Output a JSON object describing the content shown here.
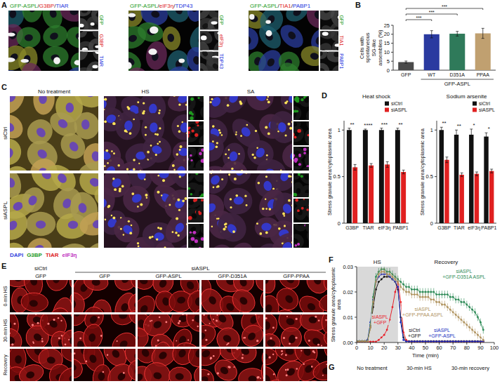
{
  "panel_labels": [
    "A",
    "B",
    "C",
    "D",
    "E",
    "F",
    "G"
  ],
  "panel_a": {
    "images": [
      {
        "title": "GFP-ASPL/G3BP/TIAR",
        "channels": [
          "GFP",
          "G3BP",
          "TIAR"
        ]
      },
      {
        "title": "GFP-ASPL/eIF3η/TDP43",
        "channels": [
          "GFP",
          "eIF3η",
          "TDP43"
        ]
      },
      {
        "title": "GFP-ASPL/TIA1/PABP1",
        "channels": [
          "GFP",
          "TIA1",
          "PABP1"
        ]
      }
    ]
  },
  "panel_c": {
    "columns": [
      "No treatment",
      "HS",
      "SA"
    ],
    "rows": [
      "siCtrl",
      "siASPL"
    ],
    "stain_legend": [
      "DAPI",
      "G3BP",
      "TIAR",
      "eIF3η"
    ]
  },
  "panel_e": {
    "groups": [
      {
        "label": "siCtrl",
        "columns": [
          "GFP"
        ]
      },
      {
        "label": "siASPL",
        "columns": [
          "GFP",
          "GFP-ASPL",
          "GFP-D351A",
          "GFP-PPAA"
        ]
      }
    ],
    "rows": [
      "0-min HS",
      "30-min HS",
      "Recovery"
    ]
  },
  "panel_g": {
    "columns": [
      "No treatment",
      "30-min HS",
      "30-min recovery"
    ]
  },
  "chart_data": [
    {
      "type": "bar",
      "y_label": "Cells with spontaneous SG-like assemblies (%)",
      "categories": [
        "GFP",
        "WT",
        "D351A",
        "PPAA"
      ],
      "values": [
        4.5,
        20,
        20.3,
        20.5
      ],
      "errors": [
        0.6,
        2,
        1.3,
        2.8
      ],
      "colors": [
        "#4a4a4a",
        "#2a3aa0",
        "#2f7a5a",
        "#c0a070"
      ],
      "ylim": [
        0,
        25
      ],
      "yticks": [
        0,
        5,
        10,
        15,
        20,
        25
      ],
      "annotations": {
        "group_label": "GFP-ASPL",
        "group": [
          1,
          3
        ]
      },
      "significance": [
        {
          "pair": [
            0,
            1
          ],
          "label": "***"
        },
        {
          "pair": [
            0,
            2
          ],
          "label": "***"
        },
        {
          "pair": [
            0,
            3
          ],
          "label": "***"
        }
      ]
    },
    {
      "type": "bar",
      "title": "Heat shock",
      "y_label": "Stress granule area/cytoplasmic area",
      "categories": [
        "G3BP",
        "TIAR",
        "eIF3η",
        "PABP1"
      ],
      "series": [
        {
          "name": "siCtrl",
          "color": "#111111",
          "values": [
            1,
            1,
            1,
            1
          ],
          "errors": [
            0.02,
            0.01,
            0.02,
            0.02
          ]
        },
        {
          "name": "siASPL",
          "color": "#e02020",
          "values": [
            0.6,
            0.62,
            0.63,
            0.55
          ],
          "errors": [
            0.03,
            0.02,
            0.03,
            0.02
          ]
        }
      ],
      "ylim": [
        0,
        1.1
      ],
      "yticks": [
        0,
        0.5,
        1
      ],
      "legend": "top-right",
      "significance": [
        "**",
        "****",
        "***",
        "**"
      ]
    },
    {
      "type": "bar",
      "title": "Sodium arsenite",
      "y_label": "Stress granule area/cytoplasmic area",
      "categories": [
        "G3BP",
        "TIAR",
        "eIF3η",
        "PABP1"
      ],
      "series": [
        {
          "name": "siCtrl",
          "color": "#111111",
          "values": [
            1,
            0.95,
            0.95,
            0.93
          ],
          "errors": [
            0.03,
            0.05,
            0.06,
            0.04
          ]
        },
        {
          "name": "siASPL",
          "color": "#e02020",
          "values": [
            0.68,
            0.52,
            0.53,
            0.56
          ],
          "errors": [
            0.03,
            0.02,
            0.02,
            0.02
          ]
        }
      ],
      "ylim": [
        0,
        1.1
      ],
      "yticks": [
        0,
        0.5,
        1
      ],
      "legend": "top-right",
      "significance": [
        "**",
        "**",
        "*",
        "*"
      ]
    },
    {
      "type": "line",
      "y_label": "Stress granule area/cytoplasmic area",
      "x_label": "Time (min)",
      "x": [
        0,
        2,
        4,
        6,
        8,
        10,
        12,
        14,
        16,
        18,
        20,
        22,
        24,
        26,
        28,
        30,
        32,
        34,
        36,
        38,
        40,
        42,
        44,
        46,
        48,
        50,
        52,
        54,
        56,
        58,
        60,
        62,
        64,
        66,
        68,
        70,
        72,
        74,
        76,
        78,
        80,
        82,
        84,
        86,
        88,
        90,
        92
      ],
      "series": [
        {
          "name": "siCtrl+GFP",
          "color": "#111111",
          "values": [
            0.0005,
            0.0005,
            0.0005,
            0.0005,
            0.001,
            0.006,
            0.014,
            0.021,
            0.024,
            0.025,
            0.026,
            0.026,
            0.026,
            0.025,
            0.024,
            0.021,
            0.01,
            0.002,
            0.0005,
            0.0005,
            0.0005,
            0.0005,
            0.0005,
            0.0005,
            0.0005,
            0.0005,
            0.0005,
            0.0005,
            0.0005,
            0.0005,
            0.0005,
            0.0005,
            0.0005,
            0.0005,
            0.0005,
            0.0005,
            0.0005,
            0.0005,
            0.0005,
            0.0005,
            0.0005,
            0.0005,
            0.0005,
            0.0005,
            0.0005,
            0.0005,
            0.0005
          ]
        },
        {
          "name": "siASPL+GFP",
          "color": "#e8202a",
          "values": [
            0.0003,
            0.0003,
            0.0003,
            0.0003,
            0.0003,
            0.0003,
            0.0003,
            0.0003,
            0.001,
            0.002,
            0.003,
            0.005,
            0.009,
            0.014,
            0.02,
            0.024,
            0.016,
            0.004,
            0.001,
            0.0003,
            0.0003,
            0.0003,
            0.0003,
            0.0003,
            0.0003,
            0.0003,
            0.0003,
            0.0003,
            0.0003,
            0.0003,
            0.0003,
            0.0003,
            0.0003,
            0.0003,
            0.0003,
            0.0003,
            0.0003,
            0.0003,
            0.0003,
            0.0003,
            0.0003,
            0.0003,
            0.0003,
            0.0003,
            0.0003,
            0.0003,
            0.0003
          ]
        },
        {
          "name": "siASPL+GFP-ASPL",
          "color": "#2030c0",
          "values": [
            0.0005,
            0.0005,
            0.0005,
            0.0005,
            0.001,
            0.008,
            0.017,
            0.024,
            0.026,
            0.027,
            0.027,
            0.027,
            0.026,
            0.025,
            0.024,
            0.022,
            0.008,
            0.001,
            0.0004,
            0.0004,
            0.0004,
            0.0004,
            0.0004,
            0.0004,
            0.0004,
            0.0004,
            0.0004,
            0.0004,
            0.0004,
            0.0004,
            0.0004,
            0.0004,
            0.0004,
            0.0004,
            0.0004,
            0.0004,
            0.0004,
            0.0004,
            0.0004,
            0.0004,
            0.0004,
            0.0004,
            0.0004,
            0.0004,
            0.0004,
            0.0004,
            0.0004
          ]
        },
        {
          "name": "siASPL+GFP-D351A ASPL",
          "color": "#2e8b57",
          "values": [
            0.0005,
            0.0005,
            0.0005,
            0.0005,
            0.0005,
            0.007,
            0.018,
            0.026,
            0.028,
            0.029,
            0.029,
            0.028,
            0.028,
            0.027,
            0.026,
            0.025,
            0.024,
            0.023,
            0.022,
            0.022,
            0.021,
            0.021,
            0.021,
            0.02,
            0.02,
            0.02,
            0.02,
            0.02,
            0.02,
            0.019,
            0.019,
            0.019,
            0.019,
            0.019,
            0.018,
            0.018,
            0.017,
            0.017,
            0.016,
            0.016,
            0.015,
            0.014,
            0.013,
            0.012,
            0.01,
            0.008,
            0.005
          ],
          "errors": [
            0.0003,
            0.0003,
            0.0003,
            0.0003,
            0.0003,
            0.0015,
            0.0015,
            0.0015,
            0.0015,
            0.0015,
            0.0015,
            0.0015,
            0.0015,
            0.0015,
            0.0015,
            0.0015,
            0.0015,
            0.0015,
            0.0015,
            0.0015,
            0.0015,
            0.0015,
            0.0015,
            0.0015,
            0.0015,
            0.0015,
            0.0015,
            0.0015,
            0.0015,
            0.0015,
            0.0015,
            0.0015,
            0.0015,
            0.0015,
            0.0015,
            0.0015,
            0.0015,
            0.0015,
            0.0015,
            0.0015,
            0.0015,
            0.0015,
            0.0015,
            0.0015,
            0.0015,
            0.0015,
            0.0015
          ]
        },
        {
          "name": "siASPL+GFP-PPAA ASPL",
          "color": "#b0935f",
          "values": [
            0.0005,
            0.0005,
            0.0005,
            0.0005,
            0.0005,
            0.006,
            0.016,
            0.024,
            0.027,
            0.028,
            0.028,
            0.027,
            0.027,
            0.026,
            0.025,
            0.024,
            0.022,
            0.021,
            0.02,
            0.02,
            0.019,
            0.019,
            0.019,
            0.018,
            0.018,
            0.018,
            0.018,
            0.017,
            0.017,
            0.016,
            0.016,
            0.015,
            0.015,
            0.014,
            0.013,
            0.012,
            0.011,
            0.01,
            0.009,
            0.008,
            0.007,
            0.006,
            0.005,
            0.004,
            0.003,
            0.002,
            0.001
          ],
          "errors": [
            0.0003,
            0.0003,
            0.0003,
            0.0003,
            0.0003,
            0.0015,
            0.0015,
            0.0015,
            0.0015,
            0.0015,
            0.0015,
            0.0015,
            0.0015,
            0.0015,
            0.0015,
            0.0015,
            0.0015,
            0.0015,
            0.0015,
            0.0015,
            0.0015,
            0.0015,
            0.0015,
            0.0015,
            0.0015,
            0.0015,
            0.0015,
            0.0015,
            0.0015,
            0.0015,
            0.0015,
            0.0015,
            0.0015,
            0.0015,
            0.0015,
            0.0015,
            0.0015,
            0.0015,
            0.0015,
            0.0015,
            0.0015,
            0.0015,
            0.0015,
            0.0015,
            0.0015,
            0.0015,
            0.0015
          ]
        }
      ],
      "xlim": [
        0,
        100
      ],
      "xticks": [
        0,
        10,
        20,
        30,
        40,
        50,
        60,
        70,
        80,
        90,
        100
      ],
      "ylim": [
        0,
        0.03
      ],
      "yticks": [
        {
          "value": 0,
          "label": "0.00"
        },
        0.01,
        0.02,
        0.03
      ],
      "marker": "circle",
      "annotations": {
        "shaded_region": {
          "label": "HS",
          "from": 0,
          "to": 30
        },
        "recovery_label": "Recovery"
      }
    }
  ]
}
